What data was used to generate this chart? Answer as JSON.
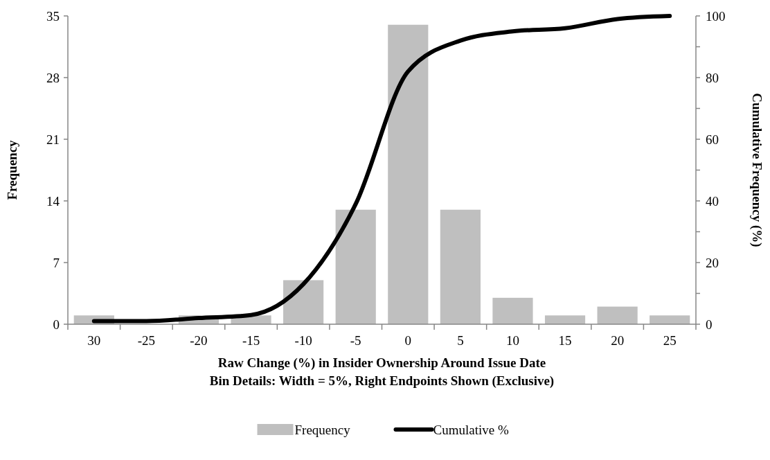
{
  "chart_data": {
    "type": "bar",
    "xlabel": "Raw Change (%) in Insider Ownership Around Issue Date\nBin Details: Width = 5%, Right Endpoints Shown (Exclusive)",
    "ylabel": "Frequency",
    "y2label": "Cumulative Frequency (%)",
    "categories": [
      "30",
      "-25",
      "-20",
      "-15",
      "-10",
      "-5",
      "0",
      "5",
      "10",
      "15",
      "20",
      "25"
    ],
    "series": [
      {
        "name": "Frequency",
        "color": "#bfbfbf",
        "values": [
          1,
          0,
          1,
          1,
          5,
          13,
          34,
          13,
          3,
          1,
          2,
          1
        ]
      },
      {
        "name": "Cumulative %",
        "type": "line",
        "axis": "y2",
        "color": "#000000",
        "values": [
          1,
          1,
          2,
          3,
          13,
          39,
          82,
          92,
          95,
          96,
          99,
          100
        ]
      }
    ],
    "ylim": [
      0,
      35
    ],
    "yticks": [
      0,
      7,
      14,
      21,
      28,
      35
    ],
    "y2lim": [
      0,
      100
    ],
    "y2ticks": [
      0,
      {
        "value": 10,
        "label": null
      },
      20,
      {
        "value": 30,
        "label": null
      },
      40,
      {
        "value": 50,
        "label": null
      },
      60,
      {
        "value": 70,
        "label": null
      },
      80,
      {
        "value": 90,
        "label": null
      },
      100
    ],
    "legend": "bottom",
    "line_style": "solid",
    "marker": "none"
  }
}
